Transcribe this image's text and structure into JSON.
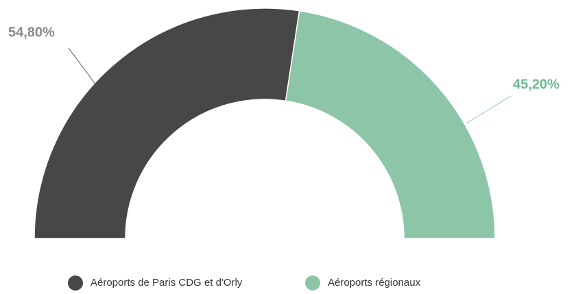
{
  "chart_data": {
    "type": "pie",
    "categories": [
      "Aéroports de Paris CDG et d'Orly",
      "Aéroports régionaux"
    ],
    "values": [
      54.8,
      45.2
    ],
    "value_labels": [
      "54,80%",
      "45,20%"
    ],
    "colors": [
      "#474747",
      "#8dc5a8"
    ]
  }
}
